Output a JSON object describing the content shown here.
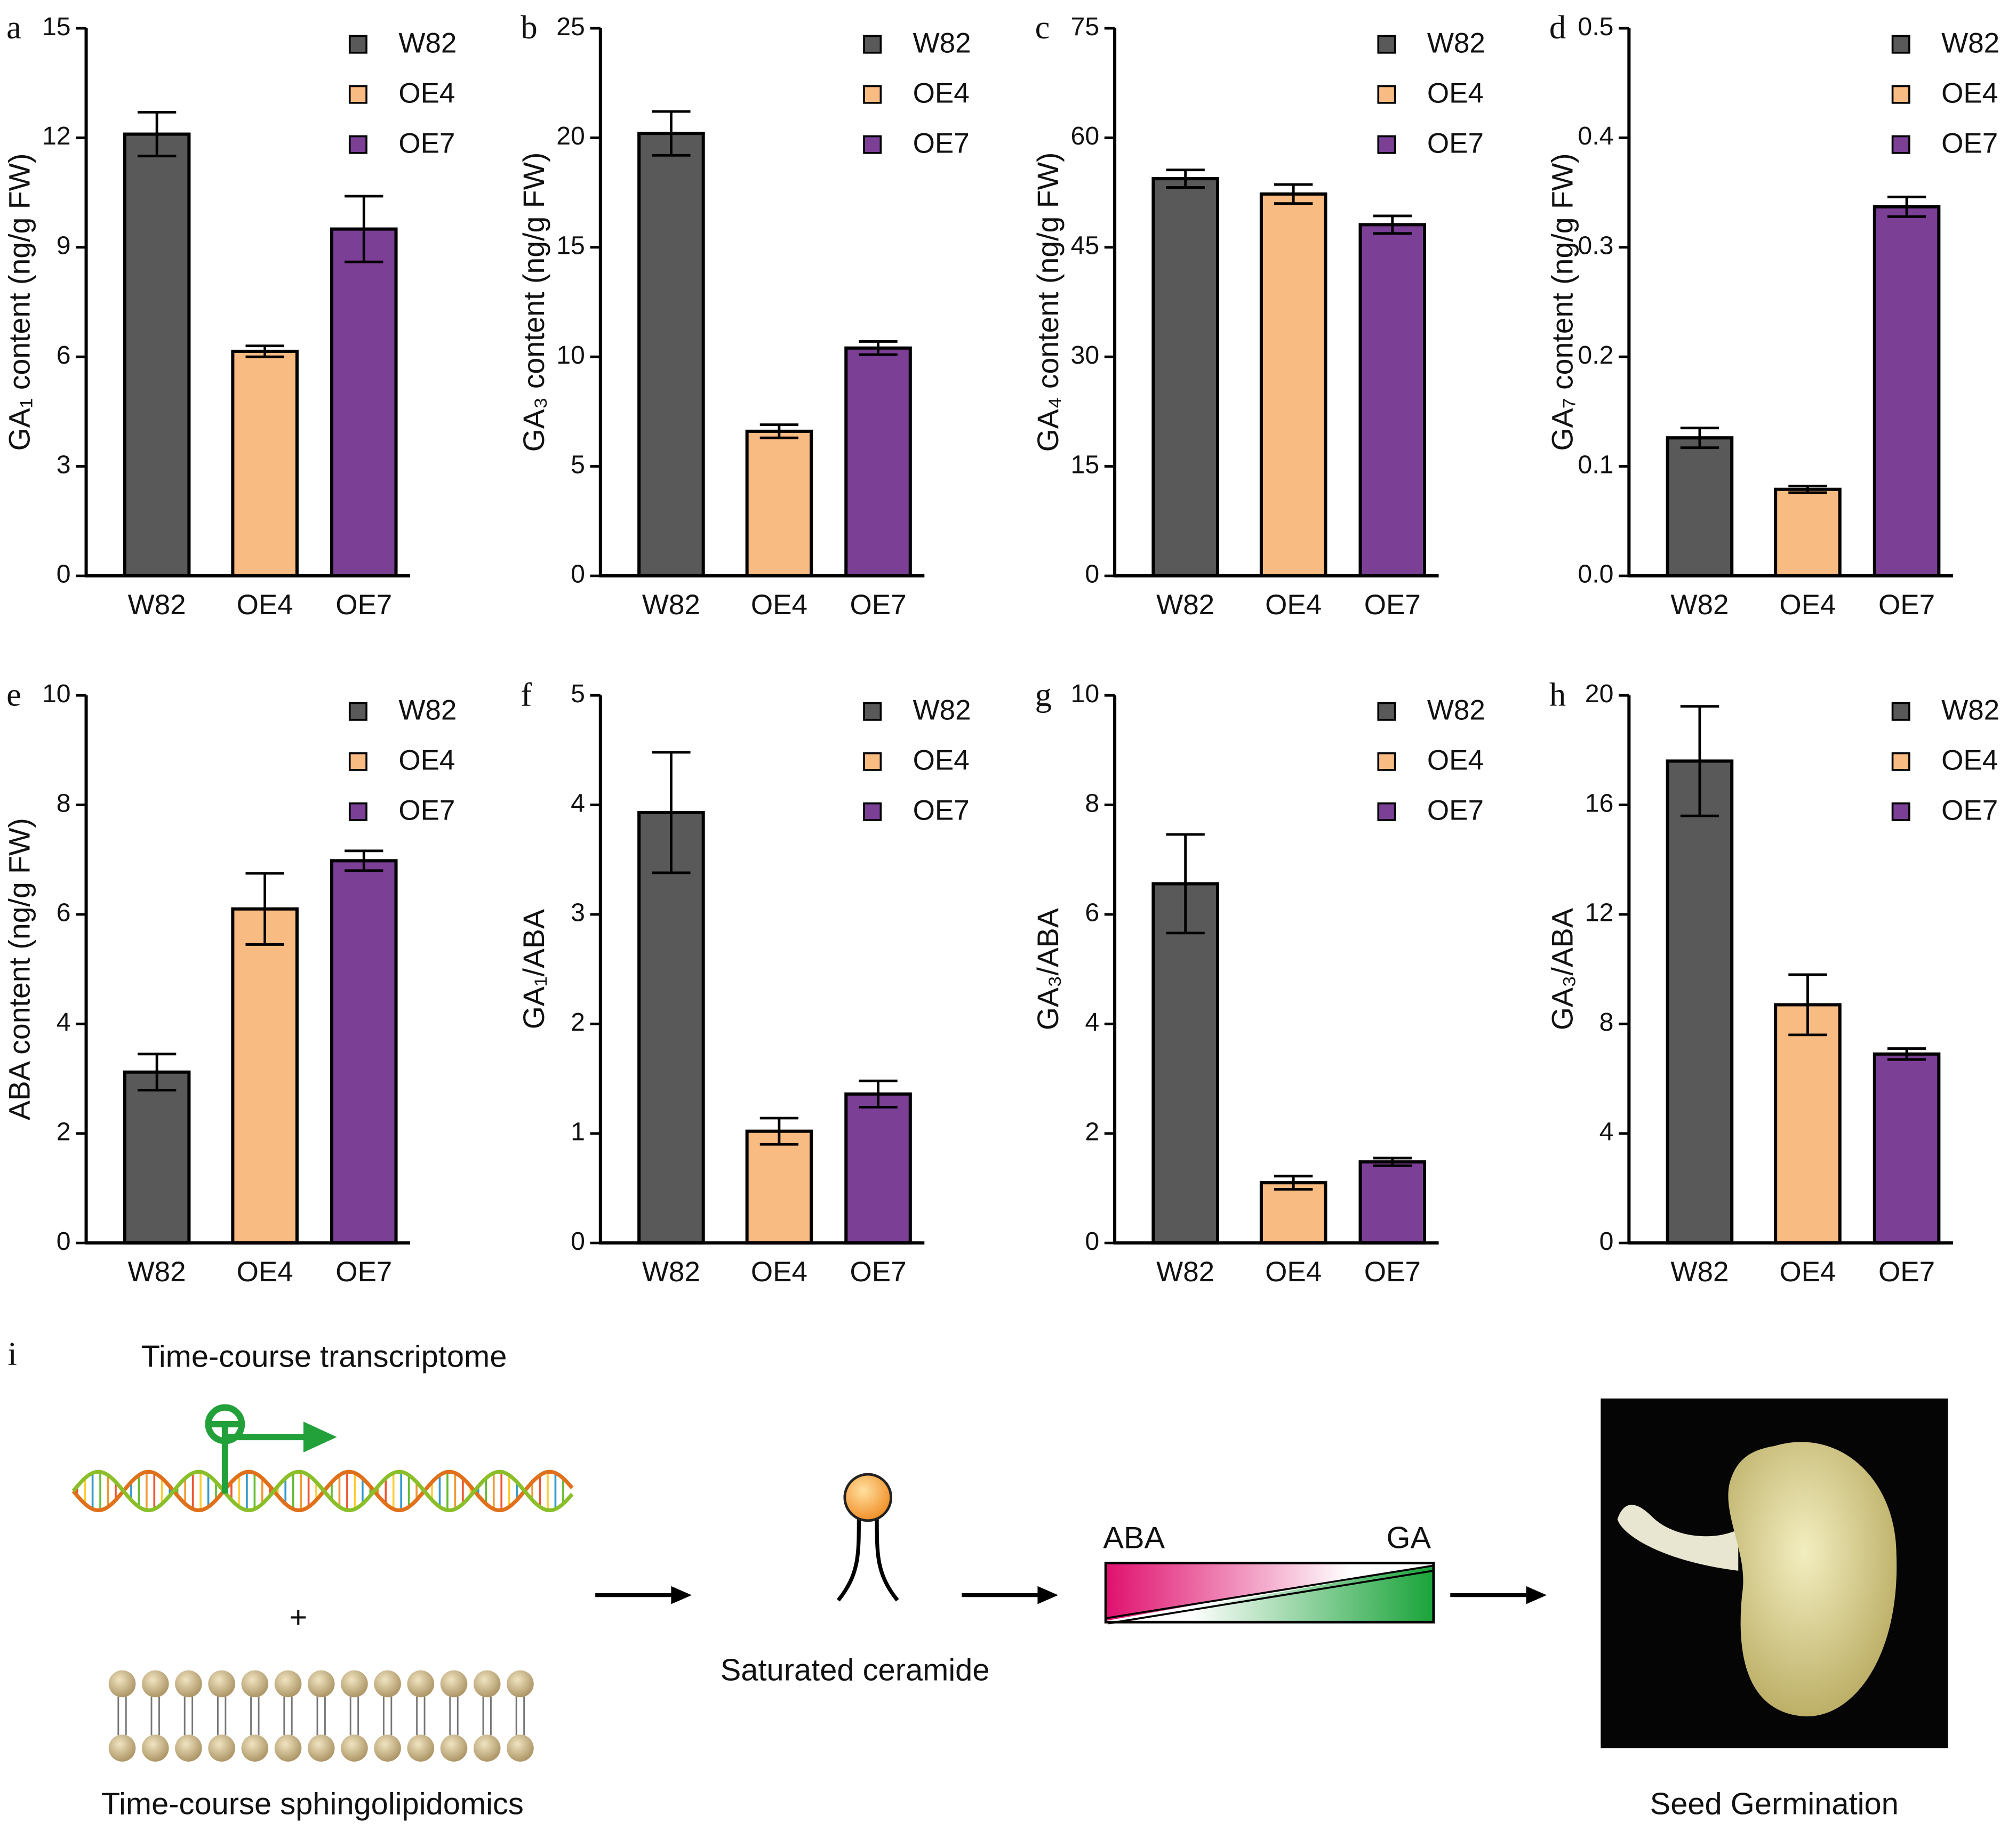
{
  "chart_data": [
    {
      "type": "bar",
      "panel": "a",
      "ylabel": "GA₁ content (ng/g FW)",
      "categories": [
        "W82",
        "OE4",
        "OE7"
      ],
      "values": [
        12.1,
        6.15,
        9.5
      ],
      "errors": [
        0.6,
        0.15,
        0.9
      ],
      "colors": [
        "#595959",
        "#f8bb82",
        "#7b3f96"
      ],
      "ylim": [
        0,
        15
      ],
      "yticks": [
        0,
        3,
        6,
        9,
        12,
        15
      ]
    },
    {
      "type": "bar",
      "panel": "b",
      "ylabel": "GA₃ content (ng/g FW)",
      "categories": [
        "W82",
        "OE4",
        "OE7"
      ],
      "values": [
        20.2,
        6.6,
        10.4
      ],
      "errors": [
        1.0,
        0.3,
        0.3
      ],
      "colors": [
        "#595959",
        "#f8bb82",
        "#7b3f96"
      ],
      "ylim": [
        0,
        25
      ],
      "yticks": [
        0,
        5,
        10,
        15,
        20,
        25
      ]
    },
    {
      "type": "bar",
      "panel": "c",
      "ylabel": "GA₄ content (ng/g FW)",
      "categories": [
        "W82",
        "OE4",
        "OE7"
      ],
      "values": [
        54.4,
        52.3,
        48.1
      ],
      "errors": [
        1.2,
        1.3,
        1.2
      ],
      "colors": [
        "#595959",
        "#f8bb82",
        "#7b3f96"
      ],
      "ylim": [
        0,
        75
      ],
      "yticks": [
        0,
        15,
        30,
        45,
        60,
        75
      ]
    },
    {
      "type": "bar",
      "panel": "d",
      "ylabel": "GA₇ content (ng/g FW)",
      "categories": [
        "W82",
        "OE4",
        "OE7"
      ],
      "values": [
        0.126,
        0.079,
        0.337
      ],
      "errors": [
        0.009,
        0.003,
        0.009
      ],
      "colors": [
        "#595959",
        "#f8bb82",
        "#7b3f96"
      ],
      "ylim": [
        0,
        0.5
      ],
      "yticks": [
        {
          "value": 0,
          "label": "0.0"
        },
        0.1,
        0.2,
        0.3,
        0.4,
        0.5
      ]
    },
    {
      "type": "bar",
      "panel": "e",
      "ylabel": "ABA content (ng/g FW)",
      "categories": [
        "W82",
        "OE4",
        "OE7"
      ],
      "values": [
        3.12,
        6.1,
        6.98
      ],
      "errors": [
        0.33,
        0.65,
        0.18
      ],
      "colors": [
        "#595959",
        "#f8bb82",
        "#7b3f96"
      ],
      "ylim": [
        0,
        10
      ],
      "yticks": [
        0,
        2,
        4,
        6,
        8,
        10
      ]
    },
    {
      "type": "bar",
      "panel": "f",
      "ylabel": "GA₁/ABA",
      "categories": [
        "W82",
        "OE4",
        "OE7"
      ],
      "values": [
        3.93,
        1.02,
        1.36
      ],
      "errors": [
        0.55,
        0.12,
        0.12
      ],
      "colors": [
        "#595959",
        "#f8bb82",
        "#7b3f96"
      ],
      "ylim": [
        0,
        5
      ],
      "yticks": [
        0,
        1,
        2,
        3,
        4,
        5
      ]
    },
    {
      "type": "bar",
      "panel": "g",
      "ylabel": "GA₃/ABA",
      "categories": [
        "W82",
        "OE4",
        "OE7"
      ],
      "values": [
        6.56,
        1.1,
        1.48
      ],
      "errors": [
        0.9,
        0.12,
        0.07
      ],
      "colors": [
        "#595959",
        "#f8bb82",
        "#7b3f96"
      ],
      "ylim": [
        0,
        10
      ],
      "yticks": [
        0,
        2,
        4,
        6,
        8,
        10
      ]
    },
    {
      "type": "bar",
      "panel": "h",
      "ylabel": "GA₃/ABA",
      "categories": [
        "W82",
        "OE4",
        "OE7"
      ],
      "values": [
        17.6,
        8.7,
        6.9
      ],
      "errors": [
        2.0,
        1.1,
        0.2
      ],
      "colors": [
        "#595959",
        "#f8bb82",
        "#7b3f96"
      ],
      "ylim": [
        0,
        20
      ],
      "yticks": [
        0,
        4,
        8,
        12,
        16,
        20
      ]
    }
  ],
  "diagram": {
    "panel": "i",
    "transcriptome": "Time-course transcriptome",
    "plus": "+",
    "sphingolipidomics": "Time-course sphingolipidomics",
    "ceramide": "Saturated ceramide",
    "aba": "ABA",
    "ga": "GA",
    "germination": "Seed Germination"
  }
}
